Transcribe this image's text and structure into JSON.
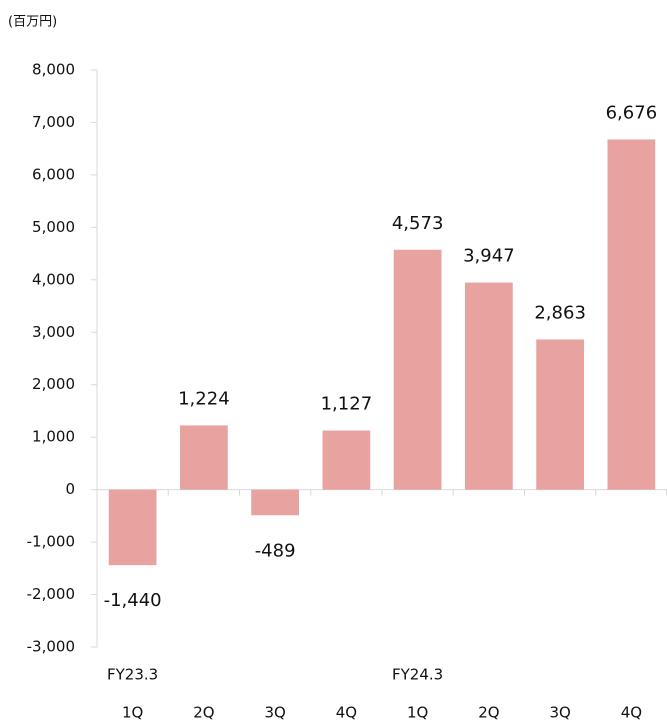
{
  "chart_data": {
    "type": "bar",
    "y_label": "(百万円)",
    "categories": [
      "1Q",
      "2Q",
      "3Q",
      "4Q",
      "1Q",
      "2Q",
      "3Q",
      "4Q"
    ],
    "category_groups": [
      "FY23.3",
      null,
      null,
      null,
      "FY24.3",
      null,
      null,
      null
    ],
    "values": [
      -1440,
      1224,
      -489,
      1127,
      4573,
      3947,
      2863,
      6676
    ],
    "value_labels": [
      "-1,440",
      "1,224",
      "-489",
      "1,127",
      "4,573",
      "3,947",
      "2,863",
      "6,676"
    ],
    "color": "#e8a2a0",
    "ylim": [
      -3000,
      8000
    ],
    "yticks": [
      {
        "value": -3000,
        "label": "-3,000"
      },
      {
        "value": -2000,
        "label": "-2,000"
      },
      {
        "value": -1000,
        "label": "-1,000"
      },
      0,
      {
        "value": 1000,
        "label": "1,000"
      },
      {
        "value": 2000,
        "label": "2,000"
      },
      {
        "value": 3000,
        "label": "3,000"
      },
      {
        "value": 4000,
        "label": "4,000"
      },
      {
        "value": 5000,
        "label": "5,000"
      },
      {
        "value": 6000,
        "label": "6,000"
      },
      {
        "value": 7000,
        "label": "7,000"
      },
      {
        "value": 8000,
        "label": "8,000"
      }
    ],
    "grid": false
  }
}
